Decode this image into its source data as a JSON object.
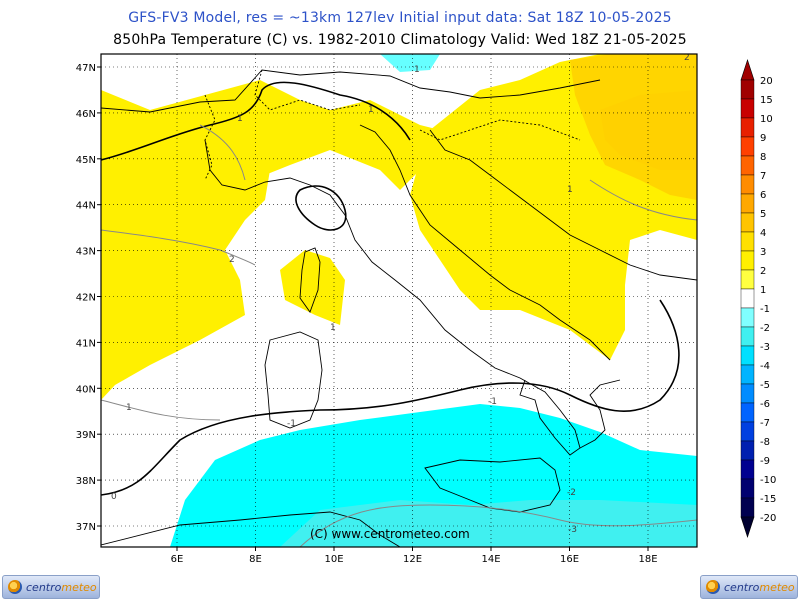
{
  "header": {
    "line1": "GFS-FV3 Model, res = ~13km 127lev   Initial input data: Sat 18Z 10-05-2025",
    "line2": "850hPa Temperature (C) vs. 1982-2010 Climatology  Valid: Wed 18Z 21-05-2025"
  },
  "map": {
    "lon_ticks": [
      "6E",
      "8E",
      "10E",
      "12E",
      "14E",
      "16E",
      "18E"
    ],
    "lat_ticks": [
      "47N",
      "46N",
      "45N",
      "44N",
      "43N",
      "42N",
      "41N",
      "40N",
      "39N",
      "38N",
      "37N"
    ],
    "watermark": "(C) www.centrometeo.com",
    "contour_labels": [
      "1",
      "2",
      "1",
      "1",
      "2",
      "1",
      "1",
      "-1",
      "-1",
      "-2",
      "-3",
      "0",
      "1"
    ]
  },
  "legend": {
    "values": [
      "20",
      "15",
      "10",
      "9",
      "8",
      "7",
      "6",
      "5",
      "4",
      "3",
      "2",
      "1",
      "-1",
      "-2",
      "-3",
      "-4",
      "-5",
      "-6",
      "-7",
      "-8",
      "-9",
      "-10",
      "-15",
      "-20"
    ],
    "colors": [
      "#a00000",
      "#c80000",
      "#e82000",
      "#ff4000",
      "#ff6400",
      "#ff8c00",
      "#ffa800",
      "#ffc400",
      "#ffe000",
      "#fff000",
      "#ffff40",
      "#ffffff",
      "#80ffff",
      "#40f0f0",
      "#00e0ff",
      "#00b4ff",
      "#008cff",
      "#0064ff",
      "#0040e0",
      "#0020b0",
      "#000090",
      "#000070",
      "#000050",
      "#000030"
    ]
  },
  "logos": {
    "left": {
      "a": "centro",
      "b": "meteo"
    },
    "right": {
      "a": "centro",
      "b": "meteo"
    }
  },
  "colors": {
    "warm_anomaly": "#fff000",
    "warm_anomaly_strong": "#ffd500",
    "cool_anomaly": "#00ffff",
    "cool_anomaly_strong": "#40f0f0",
    "title_blue": "#2d52c8"
  }
}
